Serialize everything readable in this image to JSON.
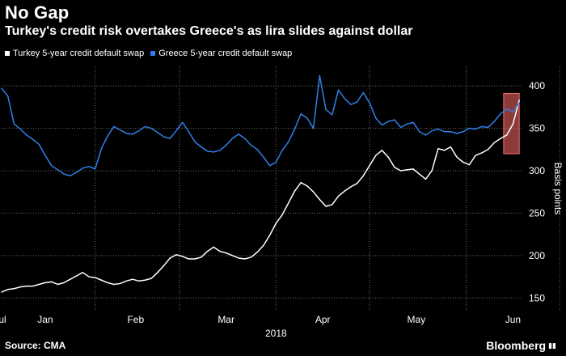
{
  "header": {
    "title": "No Gap",
    "subtitle": "Turkey's credit risk overtakes Greece's as lira slides against dollar"
  },
  "legend": {
    "items": [
      {
        "label": "Turkey 5-year credit default swap",
        "color": "#ffffff"
      },
      {
        "label": "Greece 5-year credit default swap",
        "color": "#2f80e8"
      }
    ]
  },
  "footer": {
    "source": "Source: CMA",
    "brand": "Bloomberg",
    "brand_mark": "▮▮"
  },
  "chart_data": {
    "type": "line",
    "title": "No Gap",
    "subtitle": "Turkey's credit risk overtakes Greece's as lira slides against dollar",
    "xlabel": "2018",
    "ylabel": "Basis points",
    "y_ticks": [
      150,
      200,
      250,
      300,
      350,
      400
    ],
    "ylim": [
      135,
      423
    ],
    "x_ticks": [
      "Jan",
      "Feb",
      "Mar",
      "Apr",
      "May",
      "Jun",
      "Jul"
    ],
    "x_year_label": "2018",
    "grid": true,
    "legend_position": "top-left",
    "highlight": {
      "label": "",
      "x_range": [
        161,
        166
      ],
      "y_range": [
        320,
        391
      ],
      "color": "#ff6b6b"
    },
    "series": [
      {
        "name": "Turkey 5-year credit default swap",
        "color": "#ffffff",
        "x": [
          0,
          2,
          4,
          6,
          8,
          10,
          12,
          14,
          16,
          18,
          20,
          22,
          24,
          26,
          28,
          30,
          32,
          34,
          36,
          38,
          40,
          42,
          44,
          46,
          48,
          50,
          52,
          54,
          56,
          58,
          60,
          62,
          64,
          66,
          68,
          70,
          72,
          74,
          76,
          78,
          80,
          82,
          84,
          86,
          88,
          90,
          92,
          94,
          96,
          98,
          100,
          102,
          104,
          106,
          108,
          110,
          112,
          114,
          116,
          118,
          120,
          122,
          124,
          126,
          128,
          130,
          132,
          134,
          136,
          138,
          140,
          142,
          144,
          146,
          148,
          150,
          152,
          154,
          156,
          158,
          160,
          162,
          164,
          166
        ],
        "values": [
          157,
          160,
          161,
          163,
          164,
          164,
          166,
          168,
          169,
          166,
          168,
          172,
          176,
          180,
          175,
          174,
          171,
          168,
          166,
          167,
          170,
          172,
          170,
          171,
          173,
          180,
          188,
          197,
          201,
          199,
          196,
          196,
          198,
          205,
          210,
          205,
          203,
          200,
          197,
          196,
          198,
          204,
          212,
          224,
          238,
          248,
          262,
          276,
          286,
          282,
          275,
          266,
          258,
          260,
          270,
          276,
          281,
          285,
          294,
          306,
          318,
          324,
          316,
          304,
          300,
          301,
          302,
          296,
          290,
          300,
          326,
          324,
          328,
          316,
          310,
          307,
          318,
          321,
          325,
          333,
          338,
          342,
          355,
          383
        ]
      },
      {
        "name": "Greece 5-year credit default swap",
        "color": "#2f80e8",
        "x": [
          0,
          2,
          4,
          6,
          8,
          10,
          12,
          14,
          16,
          18,
          20,
          22,
          24,
          26,
          28,
          30,
          32,
          34,
          36,
          38,
          40,
          42,
          44,
          46,
          48,
          50,
          52,
          54,
          56,
          58,
          60,
          62,
          64,
          66,
          68,
          70,
          72,
          74,
          76,
          78,
          80,
          82,
          84,
          86,
          88,
          90,
          92,
          94,
          96,
          98,
          100,
          102,
          104,
          106,
          108,
          110,
          112,
          114,
          116,
          118,
          120,
          122,
          124,
          126,
          128,
          130,
          132,
          134,
          136,
          138,
          140,
          142,
          144,
          146,
          148,
          150,
          152,
          154,
          156,
          158,
          160,
          162,
          164,
          166
        ],
        "values": [
          397,
          388,
          355,
          349,
          342,
          337,
          331,
          318,
          306,
          301,
          296,
          294,
          298,
          303,
          305,
          302,
          326,
          341,
          352,
          348,
          344,
          343,
          347,
          352,
          350,
          345,
          340,
          338,
          347,
          357,
          346,
          334,
          328,
          323,
          322,
          324,
          330,
          338,
          343,
          338,
          330,
          325,
          316,
          306,
          310,
          324,
          334,
          349,
          367,
          362,
          350,
          412,
          372,
          366,
          395,
          385,
          378,
          381,
          392,
          380,
          362,
          354,
          358,
          360,
          351,
          355,
          357,
          346,
          342,
          347,
          349,
          346,
          346,
          344,
          346,
          350,
          349,
          352,
          351,
          358,
          367,
          373,
          369,
          380
        ]
      }
    ]
  }
}
